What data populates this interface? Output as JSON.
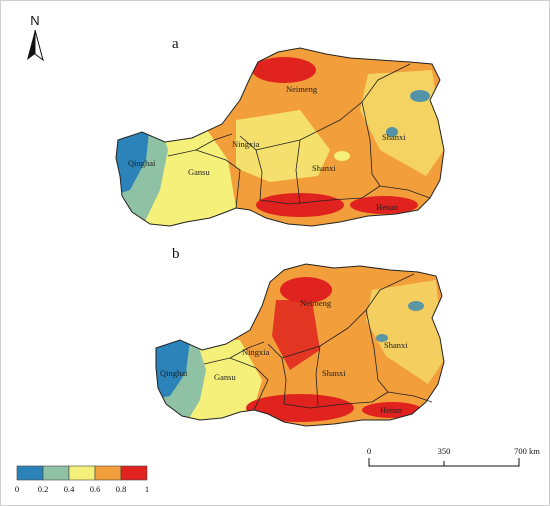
{
  "north_arrow": {
    "letter": "N"
  },
  "panels": [
    {
      "label": "a",
      "provinces": [
        "Qinghai",
        "Gansu",
        "Ningxia",
        "Neimeng",
        "Shanxi",
        "Shanxi",
        "Henan"
      ]
    },
    {
      "label": "b",
      "provinces": [
        "Qinghai",
        "Gansu",
        "Ningxia",
        "Neimeng",
        "Shanxi",
        "Shanxi",
        "Henan"
      ]
    }
  ],
  "legend": {
    "colors": [
      "#2b83ba",
      "#8fc1a4",
      "#f5f07a",
      "#f29e3b",
      "#e0231f"
    ],
    "ticks": [
      "0",
      "0.2",
      "0.4",
      "0.6",
      "0.8",
      "1"
    ]
  },
  "scale_bar": {
    "ticks": [
      "0",
      "350",
      "700 km"
    ]
  }
}
